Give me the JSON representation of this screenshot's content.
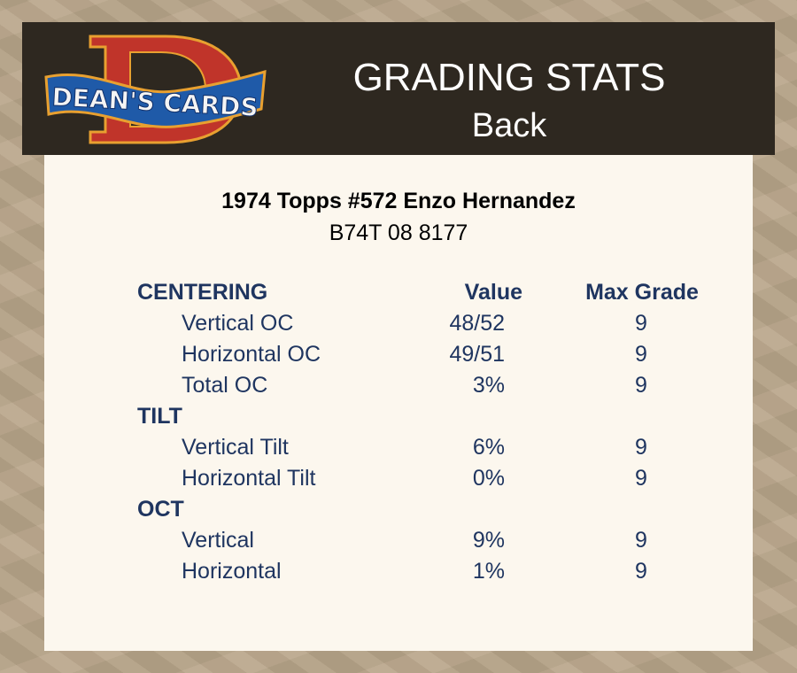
{
  "header": {
    "logo_text": "DEAN'S CARDS",
    "title": "GRADING STATS",
    "subtitle": "Back"
  },
  "card": {
    "name": "1974 Topps #572 Enzo Hernandez",
    "cert": "B74T 08 8177"
  },
  "table": {
    "columns": [
      "Value",
      "Max Grade"
    ],
    "sections": [
      {
        "title": "CENTERING",
        "rows": [
          {
            "label": "Vertical OC",
            "value": "48/52",
            "max_grade": "9"
          },
          {
            "label": "Horizontal OC",
            "value": "49/51",
            "max_grade": "9"
          },
          {
            "label": "Total OC",
            "value": "3%",
            "max_grade": "9"
          }
        ]
      },
      {
        "title": "TILT",
        "rows": [
          {
            "label": "Vertical Tilt",
            "value": "6%",
            "max_grade": "9"
          },
          {
            "label": "Horizontal Tilt",
            "value": "0%",
            "max_grade": "9"
          }
        ]
      },
      {
        "title": "OCT",
        "rows": [
          {
            "label": "Vertical",
            "value": "9%",
            "max_grade": "9"
          },
          {
            "label": "Horizontal",
            "value": "1%",
            "max_grade": "9"
          }
        ]
      }
    ]
  },
  "colors": {
    "header_bg": "#2e2820",
    "panel_bg": "#fcf7ee",
    "text_navy": "#1f3560",
    "logo_red": "#c0342a",
    "logo_blue": "#1f5aa8",
    "logo_orange": "#e8a030"
  }
}
